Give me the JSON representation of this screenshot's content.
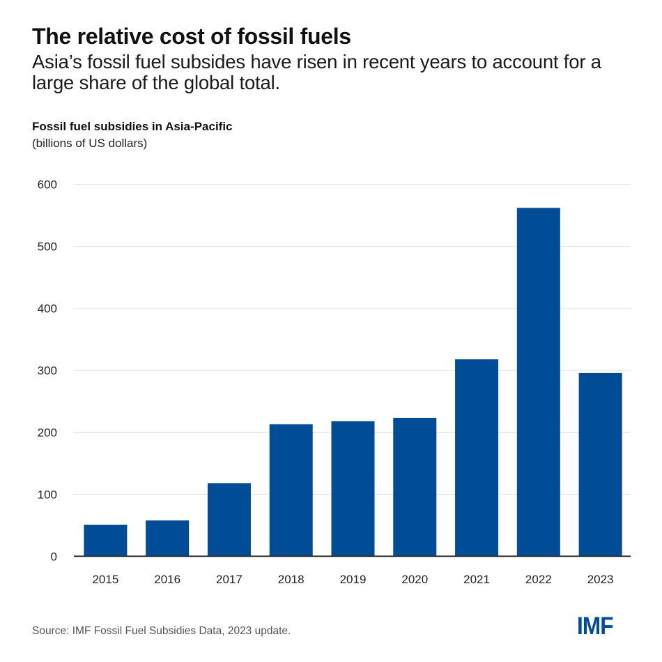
{
  "header": {
    "title": "The relative cost of fossil fuels",
    "subtitle": "Asia’s fossil fuel subsides have risen in recent years to account for a large share of the global total."
  },
  "footer": {
    "source": "Source: IMF Fossil Fuel Subsidies Data, 2023 update.",
    "logo": "IMF"
  },
  "colors": {
    "bar": "#004c97",
    "grid": "#e6e6e6",
    "axis": "#333333",
    "logo": "#004c97"
  },
  "chart_data": {
    "type": "bar",
    "title": "Fossil fuel subsidies in Asia-Pacific",
    "subtitle": "(billions of US dollars)",
    "xlabel": "",
    "ylabel": "",
    "categories": [
      "2015",
      "2016",
      "2017",
      "2018",
      "2019",
      "2020",
      "2021",
      "2022",
      "2023"
    ],
    "values": [
      51,
      58,
      118,
      213,
      218,
      223,
      318,
      562,
      296
    ],
    "ylim": [
      0,
      600
    ],
    "yticks": [
      0,
      100,
      200,
      300,
      400,
      500,
      600
    ],
    "ytick_labels": [
      "0",
      "100",
      "200",
      "300",
      "400",
      "500",
      "600"
    ],
    "grid": true,
    "legend": "none"
  }
}
